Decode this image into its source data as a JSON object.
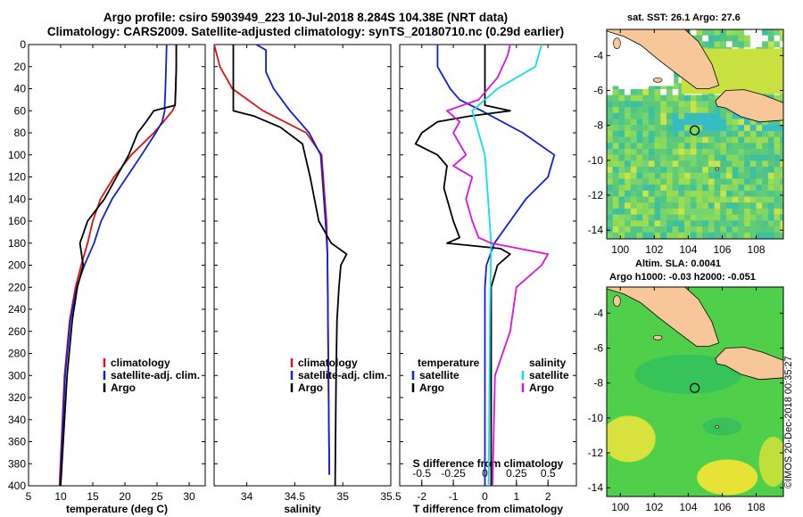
{
  "titles": {
    "line1": "Argo profile: csiro 5903949_223 10-Jul-2018 8.284S 104.38E (NRT data)",
    "line2": "Climatology: CARS2009. Satellite-adjusted climatology: synTS_20180710.nc (0.29d earlier)"
  },
  "colors": {
    "climatology": "#e01010",
    "satellite": "#1020d0",
    "argo": "#000000",
    "salinity_sat": "#10e0e0",
    "salinity_argo": "#e010e0",
    "land": "#f7c79a"
  },
  "map_labels": {
    "sst_title": "sat. SST: 26.1  Argo: 27.6",
    "sla_line1": "Altim. SLA: 0.0041",
    "sla_line2": "Argo h1000: -0.03  h2000: -0.051"
  },
  "stamp": "©IMOS 20-Dec-2018 00:35:27",
  "chart_data": [
    {
      "type": "line",
      "id": "temperature",
      "xlabel": "temperature (deg C)",
      "ylabel": "",
      "xlim": [
        5,
        32.5
      ],
      "ylim": [
        400,
        0
      ],
      "xticks": [
        5,
        10,
        15,
        20,
        25,
        30
      ],
      "yticks": [
        0,
        20,
        40,
        60,
        80,
        100,
        120,
        140,
        160,
        180,
        200,
        220,
        240,
        260,
        280,
        300,
        320,
        340,
        360,
        380,
        400
      ],
      "y": [
        0,
        20,
        40,
        55,
        60,
        70,
        80,
        100,
        120,
        140,
        160,
        180,
        200,
        220,
        250,
        300,
        400
      ],
      "legend": [
        "climatology",
        "satellite-adj. clim.",
        "Argo"
      ],
      "series": [
        {
          "name": "climatology",
          "color_key": "climatology",
          "values": [
            28.0,
            28.0,
            27.9,
            27.8,
            27.4,
            26.0,
            24.5,
            21.0,
            18.3,
            16.2,
            15.0,
            14.2,
            13.2,
            12.3,
            11.4,
            10.6,
            9.8
          ]
        },
        {
          "name": "satellite-adj. clim.",
          "color_key": "satellite",
          "values": [
            26.5,
            26.4,
            26.3,
            26.2,
            26.2,
            25.8,
            24.8,
            22.6,
            20.3,
            18.0,
            16.3,
            15.2,
            13.7,
            12.5,
            11.5,
            10.7,
            9.9
          ]
        },
        {
          "name": "Argo",
          "color_key": "argo",
          "values": [
            28.0,
            28.0,
            27.9,
            27.8,
            24.5,
            23.3,
            22.0,
            20.6,
            18.7,
            16.8,
            14.2,
            13.0,
            13.5,
            12.6,
            11.8,
            11.0,
            10.0
          ]
        }
      ]
    },
    {
      "type": "line",
      "id": "salinity",
      "xlabel": "salinity",
      "xlim": [
        33.66,
        35.5
      ],
      "ylim": [
        400,
        0
      ],
      "xticks": [
        34,
        34.5,
        35,
        35.5
      ],
      "legend": [
        "climatology",
        "satellite-adj. clim.",
        "Argo"
      ],
      "series": [
        {
          "name": "climatology",
          "color_key": "climatology",
          "y": [
            0,
            20,
            40,
            60,
            80,
            100,
            160,
            190,
            300,
            390
          ],
          "values": [
            33.66,
            33.72,
            33.85,
            34.17,
            34.62,
            34.78,
            34.83,
            34.84,
            34.85,
            34.86
          ]
        },
        {
          "name": "satellite-adj. clim.",
          "color_key": "satellite",
          "y": [
            0,
            5,
            25,
            40,
            60,
            80,
            100,
            160,
            190,
            300,
            390
          ],
          "values": [
            34.1,
            34.2,
            34.2,
            34.28,
            34.45,
            34.65,
            34.77,
            34.82,
            34.84,
            34.85,
            34.86
          ]
        },
        {
          "name": "Argo",
          "color_key": "argo",
          "y": [
            0,
            10,
            30,
            60,
            65,
            75,
            90,
            120,
            160,
            180,
            190,
            200,
            220,
            250,
            300,
            400
          ],
          "values": [
            33.86,
            33.86,
            33.86,
            33.86,
            34.08,
            34.35,
            34.58,
            34.66,
            34.75,
            34.88,
            35.04,
            34.98,
            34.96,
            34.94,
            34.93,
            34.92
          ]
        }
      ]
    },
    {
      "type": "line",
      "id": "difference",
      "xlabel": "T difference from climatology",
      "xlabel2": "S difference from climatology",
      "xlim": [
        -2.7,
        2.9
      ],
      "ylim": [
        400,
        0
      ],
      "xticks": [
        -2,
        -1,
        0,
        1,
        2
      ],
      "s_ticks": [
        -0.5,
        -0.25,
        0,
        0.25,
        0.5
      ],
      "s_tick_labels": [
        "-0.5",
        "-0.25",
        "0",
        "0.25",
        "0.5"
      ],
      "legend_left": {
        "heading": "temperature",
        "items": [
          "satellite",
          "Argo"
        ]
      },
      "legend_right": {
        "heading": "salinity",
        "items": [
          "satellite",
          "Argo"
        ]
      },
      "series": [
        {
          "name": "temperature satellite",
          "color_key": "satellite",
          "y": [
            0,
            20,
            40,
            50,
            60,
            80,
            100,
            120,
            140,
            160,
            180,
            200,
            220,
            300,
            400
          ],
          "values": [
            -1.5,
            -1.5,
            -1.1,
            -0.8,
            -0.1,
            1.2,
            2.2,
            2.0,
            1.3,
            0.8,
            0.3,
            0.05,
            0.0,
            0.0,
            0.0
          ]
        },
        {
          "name": "temperature Argo",
          "color_key": "argo",
          "y": [
            0,
            20,
            40,
            55,
            60,
            65,
            70,
            80,
            90,
            100,
            110,
            130,
            160,
            175,
            180,
            185,
            190,
            200,
            220,
            300,
            400
          ],
          "values": [
            0.0,
            0.0,
            0.0,
            0.0,
            0.8,
            -0.5,
            -1.5,
            -2.0,
            -2.2,
            -1.5,
            -1.2,
            -1.3,
            -1.0,
            -0.8,
            -1.2,
            0.5,
            0.8,
            0.4,
            0.2,
            0.2,
            0.2
          ]
        },
        {
          "name": "salinity satellite",
          "color_key": "salinity_sat",
          "y": [
            0,
            20,
            40,
            60,
            80,
            100,
            180,
            250,
            400
          ],
          "values": [
            0.45,
            0.4,
            0.1,
            -0.1,
            -0.05,
            0.0,
            0.05,
            0.04,
            0.03
          ]
        },
        {
          "name": "salinity Argo",
          "color_key": "salinity_argo",
          "y": [
            0,
            10,
            30,
            50,
            60,
            70,
            80,
            90,
            100,
            110,
            120,
            140,
            160,
            175,
            180,
            190,
            200,
            220,
            260,
            300,
            400
          ],
          "values": [
            0.2,
            0.18,
            0.1,
            -0.05,
            -0.3,
            -0.2,
            -0.25,
            -0.2,
            -0.15,
            -0.25,
            -0.1,
            -0.15,
            -0.1,
            -0.05,
            0.05,
            0.5,
            0.45,
            0.25,
            0.2,
            0.08,
            0.06
          ]
        }
      ]
    },
    {
      "type": "map",
      "id": "sst_map",
      "xticks": [
        100,
        102,
        104,
        106,
        108
      ],
      "yticks": [
        -4,
        -6,
        -8,
        -10,
        -12,
        -14
      ],
      "xlim": [
        99.2,
        109.6
      ],
      "ylim": [
        -14.5,
        -2.5
      ],
      "argo_position": [
        104.38,
        -8.284
      ]
    },
    {
      "type": "map",
      "id": "sla_map",
      "xticks": [
        100,
        102,
        104,
        106,
        108
      ],
      "yticks": [
        -4,
        -6,
        -8,
        -10,
        -12,
        -14
      ],
      "xlim": [
        99.2,
        109.6
      ],
      "ylim": [
        -14.5,
        -2.5
      ],
      "argo_position": [
        104.38,
        -8.284
      ]
    }
  ]
}
